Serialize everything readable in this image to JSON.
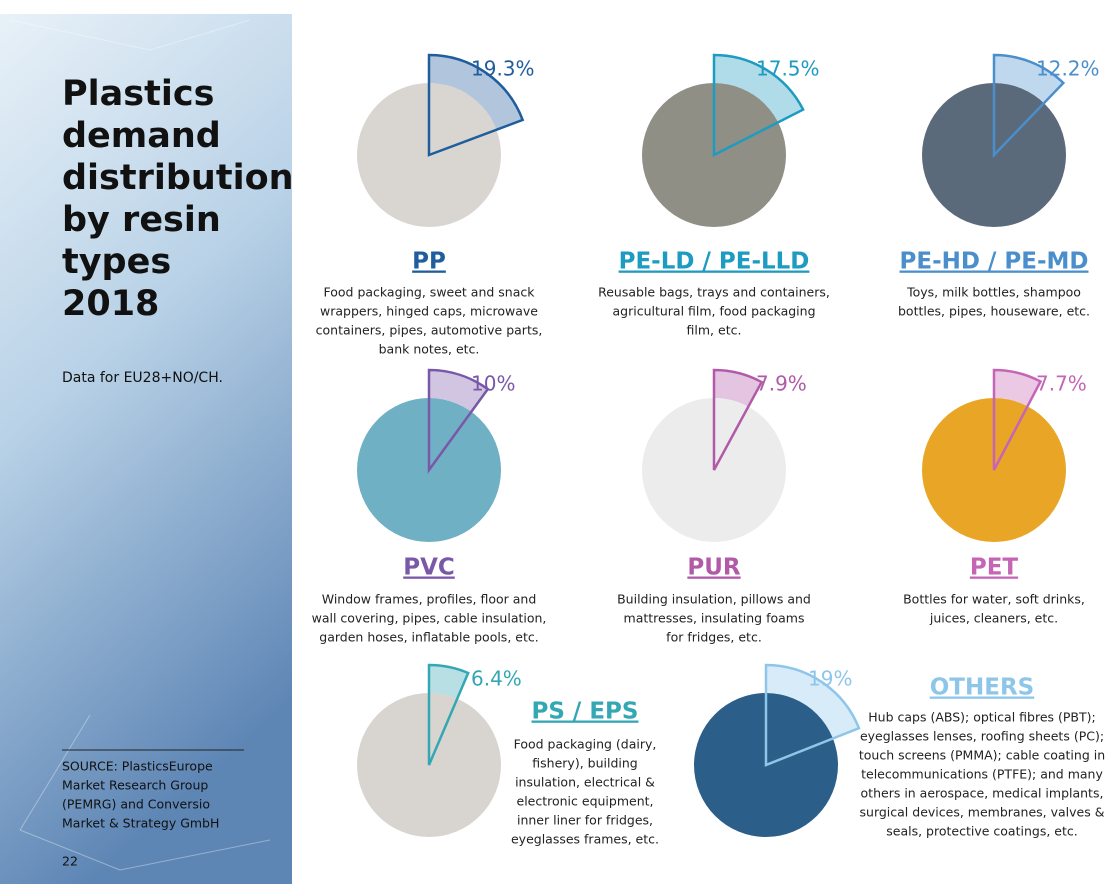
{
  "title": [
    "Plastics",
    "demand",
    "distribution",
    "by resin",
    "types",
    "2018"
  ],
  "subtitle": "Data for EU28+NO/CH.",
  "source": [
    "SOURCE: PlasticsEurope",
    "Market Research Group",
    "(PEMRG) and Conversio",
    "Market & Strategy GmbH"
  ],
  "page_number": "22",
  "items": [
    {
      "name": "PP",
      "value": 19.3,
      "value_label": "19.3%",
      "color": "#1f5d9c",
      "description": [
        "Food packaging, sweet and snack",
        "wrappers, hinged caps, microwave",
        "containers, pipes, automotive parts,",
        "bank notes, etc."
      ]
    },
    {
      "name": "PE-LD / PE-LLD",
      "value": 17.5,
      "value_label": "17.5%",
      "color": "#1d9bc0",
      "description": [
        "Reusable bags, trays and containers,",
        "agricultural film, food packaging",
        "film, etc."
      ]
    },
    {
      "name": "PE-HD / PE-MD",
      "value": 12.2,
      "value_label": "12.2%",
      "color": "#4a8fcc",
      "description": [
        "Toys, milk bottles, shampoo",
        "bottles, pipes, houseware, etc."
      ]
    },
    {
      "name": "PVC",
      "value": 10,
      "value_label": "10%",
      "color": "#7a58a8",
      "description": [
        "Window frames, profiles, floor and",
        "wall covering, pipes, cable insulation,",
        "garden hoses, inflatable pools, etc."
      ]
    },
    {
      "name": "PUR",
      "value": 7.9,
      "value_label": "7.9%",
      "color": "#b05aa8",
      "description": [
        "Building insulation, pillows and",
        "mattresses, insulating foams",
        "for fridges, etc."
      ]
    },
    {
      "name": "PET",
      "value": 7.7,
      "value_label": "7.7%",
      "color": "#c565b5",
      "description": [
        "Bottles for water, soft drinks,",
        "juices, cleaners, etc."
      ]
    },
    {
      "name": "PS / EPS",
      "value": 6.4,
      "value_label": "6.4%",
      "color": "#33a7b3",
      "description": [
        "Food packaging (dairy,",
        "fishery), building",
        "insulation, electrical &",
        "electronic equipment,",
        "inner liner for fridges,",
        "eyeglasses frames, etc."
      ]
    },
    {
      "name": "OTHERS",
      "value": 19,
      "value_label": "19%",
      "color": "#8ec6ea",
      "description": [
        "Hub caps (ABS); optical fibres (PBT);",
        "eyeglasses lenses, roofing sheets (PC);",
        "touch screens (PMMA); cable coating in",
        "telecommunications (PTFE); and many",
        "others in aerospace, medical implants,",
        "surgical devices, membranes, valves &",
        "seals, protective coatings, etc."
      ]
    }
  ]
}
